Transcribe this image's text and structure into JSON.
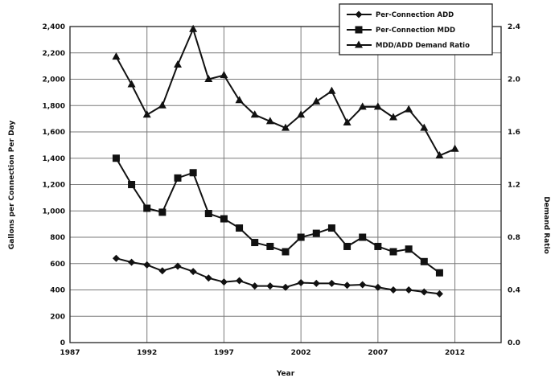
{
  "chart_data": {
    "type": "line",
    "xlabel": "Year",
    "ylabel_left": "Gallons per Connection Per Day",
    "ylabel_right": "Demand Ratio",
    "x_ticks": [
      "1987",
      "1992",
      "1997",
      "2002",
      "2007",
      "2012"
    ],
    "x_tick_values": [
      1987,
      1992,
      1997,
      2002,
      2007,
      2012
    ],
    "xlim": [
      1987,
      2015
    ],
    "y_left_ticks": [
      "0",
      "200",
      "400",
      "600",
      "800",
      "1,000",
      "1,200",
      "1,400",
      "1,600",
      "1,800",
      "2,000",
      "2,200",
      "2,400"
    ],
    "y_left_tick_values": [
      0,
      200,
      400,
      600,
      800,
      1000,
      1200,
      1400,
      1600,
      1800,
      2000,
      2200,
      2400
    ],
    "ylim_left": [
      0,
      2400
    ],
    "y_right_ticks": [
      "0.0",
      "0.4",
      "0.8",
      "1.2",
      "1.6",
      "2.0",
      "2.4"
    ],
    "y_right_tick_values": [
      0,
      0.4,
      0.8,
      1.2,
      1.6,
      2.0,
      2.4
    ],
    "ylim_right": [
      0,
      2.4
    ],
    "grid": true,
    "legend_position": "top-right",
    "series": [
      {
        "name": "Per-Connection ADD",
        "marker": "diamond",
        "axis": "left",
        "x": [
          1990,
          1991,
          1992,
          1993,
          1994,
          1995,
          1996,
          1997,
          1998,
          1999,
          2000,
          2001,
          2002,
          2003,
          2004,
          2005,
          2006,
          2007,
          2008,
          2009,
          2010,
          2011
        ],
        "values": [
          640,
          610,
          590,
          545,
          580,
          540,
          490,
          460,
          470,
          430,
          430,
          420,
          455,
          450,
          450,
          435,
          440,
          420,
          400,
          400,
          385,
          370
        ]
      },
      {
        "name": "Per-Connection MDD",
        "marker": "square",
        "axis": "left",
        "x": [
          1990,
          1991,
          1992,
          1993,
          1994,
          1995,
          1996,
          1997,
          1998,
          1999,
          2000,
          2001,
          2002,
          2003,
          2004,
          2005,
          2006,
          2007,
          2008,
          2009,
          2010,
          2011
        ],
        "values": [
          1400,
          1200,
          1020,
          990,
          1250,
          1290,
          980,
          940,
          870,
          760,
          730,
          690,
          800,
          830,
          870,
          730,
          800,
          730,
          690,
          710,
          615,
          530
        ]
      },
      {
        "name": "MDD/ADD Demand Ratio",
        "marker": "triangle",
        "axis": "right",
        "x": [
          1990,
          1991,
          1992,
          1993,
          1994,
          1995,
          1996,
          1997,
          1998,
          1999,
          2000,
          2001,
          2002,
          2003,
          2004,
          2005,
          2006,
          2007,
          2008,
          2009,
          2010,
          2011,
          2012
        ],
        "values": [
          2.17,
          1.96,
          1.73,
          1.8,
          2.11,
          2.38,
          2.0,
          2.03,
          1.84,
          1.73,
          1.68,
          1.63,
          1.73,
          1.83,
          1.91,
          1.67,
          1.79,
          1.79,
          1.71,
          1.77,
          1.63,
          1.42,
          1.47
        ]
      }
    ]
  }
}
